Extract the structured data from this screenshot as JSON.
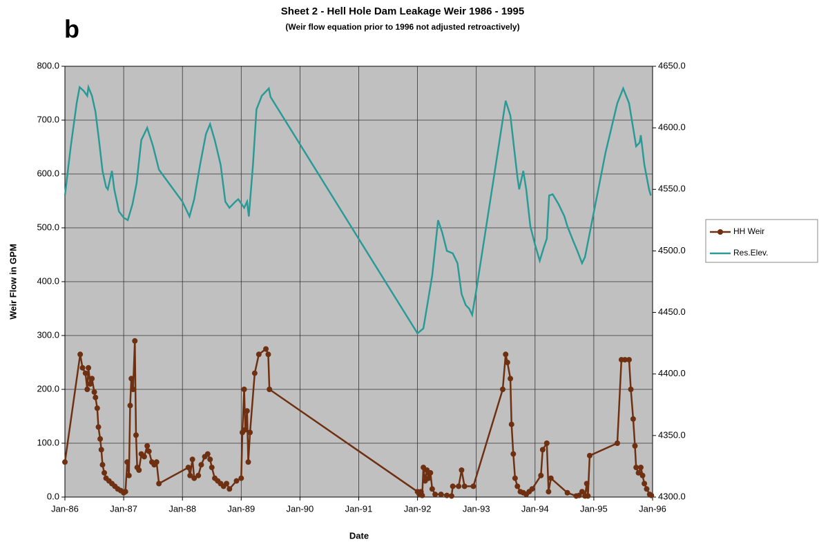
{
  "chart_data": {
    "type": "line",
    "title": "Sheet 2 - Hell Hole Dam Leakage Weir 1986 - 1995",
    "subtitle": "(Weir flow equation prior to 1996 not adjusted retroactively)",
    "annotation": "b",
    "xlabel": "Date",
    "ylabel": "Weir Flow in GPM",
    "xlim": [
      1986,
      1996
    ],
    "xticks": [
      {
        "value": 1986,
        "label": "Jan-86"
      },
      {
        "value": 1987,
        "label": "Jan-87"
      },
      {
        "value": 1988,
        "label": "Jan-88"
      },
      {
        "value": 1989,
        "label": "Jan-89"
      },
      {
        "value": 1990,
        "label": "Jan-90"
      },
      {
        "value": 1991,
        "label": "Jan-91"
      },
      {
        "value": 1992,
        "label": "Jan-92"
      },
      {
        "value": 1993,
        "label": "Jan-93"
      },
      {
        "value": 1994,
        "label": "Jan-94"
      },
      {
        "value": 1995,
        "label": "Jan-95"
      },
      {
        "value": 1996,
        "label": "Jan-96"
      }
    ],
    "ylim": [
      0,
      800
    ],
    "yticks": [
      {
        "value": 0,
        "label": "0.0"
      },
      {
        "value": 100,
        "label": "100.0"
      },
      {
        "value": 200,
        "label": "200.0"
      },
      {
        "value": 300,
        "label": "300.0"
      },
      {
        "value": 400,
        "label": "400.0"
      },
      {
        "value": 500,
        "label": "500.0"
      },
      {
        "value": 600,
        "label": "600.0"
      },
      {
        "value": 700,
        "label": "700.0"
      },
      {
        "value": 800,
        "label": "800.0"
      }
    ],
    "y2lim": [
      4300,
      4650
    ],
    "y2ticks": [
      {
        "value": 4300,
        "label": "4300.0"
      },
      {
        "value": 4350,
        "label": "4350.0"
      },
      {
        "value": 4400,
        "label": "4400.0"
      },
      {
        "value": 4450,
        "label": "4450.0"
      },
      {
        "value": 4500,
        "label": "4500.0"
      },
      {
        "value": 4550,
        "label": "4550.0"
      },
      {
        "value": 4600,
        "label": "4600.0"
      },
      {
        "value": 4650,
        "label": "4650.0"
      }
    ],
    "grid": true,
    "legend": "right",
    "series": [
      {
        "name": "HH Weir",
        "color": "#6e3010",
        "markers": true,
        "x": [
          1986.0,
          1986.26,
          1986.3,
          1986.35,
          1986.38,
          1986.4,
          1986.43,
          1986.46,
          1986.5,
          1986.52,
          1986.55,
          1986.57,
          1986.6,
          1986.62,
          1986.64,
          1986.67,
          1986.7,
          1986.75,
          1986.8,
          1986.85,
          1986.9,
          1986.95,
          1987.0,
          1987.03,
          1987.06,
          1987.09,
          1987.11,
          1987.13,
          1987.16,
          1987.19,
          1987.21,
          1987.23,
          1987.26,
          1987.3,
          1987.35,
          1987.4,
          1987.43,
          1987.48,
          1987.52,
          1987.56,
          1987.6,
          1988.1,
          1988.13,
          1988.17,
          1988.2,
          1988.27,
          1988.32,
          1988.38,
          1988.43,
          1988.47,
          1988.5,
          1988.55,
          1988.6,
          1988.65,
          1988.7,
          1988.75,
          1988.8,
          1988.92,
          1989.0,
          1989.02,
          1989.05,
          1989.07,
          1989.1,
          1989.12,
          1989.15,
          1989.23,
          1989.3,
          1989.42,
          1989.46,
          1989.48,
          1992.0,
          1992.03,
          1992.06,
          1992.08,
          1992.1,
          1992.13,
          1992.16,
          1992.19,
          1992.22,
          1992.25,
          1992.3,
          1992.4,
          1992.5,
          1992.58,
          1992.6,
          1992.7,
          1992.75,
          1992.8,
          1992.95,
          1993.45,
          1993.5,
          1993.53,
          1993.58,
          1993.6,
          1993.63,
          1993.66,
          1993.7,
          1993.75,
          1993.8,
          1993.85,
          1993.9,
          1993.95,
          1994.1,
          1994.13,
          1994.2,
          1994.23,
          1994.27,
          1994.55,
          1994.7,
          1994.75,
          1994.8,
          1994.85,
          1994.88,
          1994.9,
          1994.93,
          1995.4,
          1995.47,
          1995.53,
          1995.6,
          1995.63,
          1995.67,
          1995.7,
          1995.72,
          1995.76,
          1995.8,
          1995.83,
          1995.86,
          1995.9,
          1995.95,
          1995.98
        ],
        "values": [
          65,
          265,
          240,
          230,
          200,
          240,
          210,
          220,
          195,
          185,
          165,
          130,
          108,
          88,
          60,
          45,
          35,
          30,
          25,
          20,
          15,
          12,
          8,
          10,
          65,
          40,
          170,
          220,
          200,
          290,
          115,
          55,
          50,
          80,
          75,
          95,
          85,
          65,
          60,
          65,
          25,
          55,
          40,
          70,
          35,
          40,
          60,
          75,
          80,
          70,
          55,
          35,
          30,
          25,
          20,
          25,
          15,
          30,
          35,
          120,
          200,
          125,
          160,
          65,
          120,
          230,
          265,
          275,
          265,
          200,
          10,
          5,
          10,
          3,
          55,
          30,
          50,
          35,
          45,
          15,
          5,
          5,
          3,
          2,
          20,
          20,
          50,
          20,
          20,
          200,
          265,
          250,
          220,
          135,
          80,
          35,
          20,
          10,
          8,
          5,
          10,
          15,
          40,
          88,
          100,
          10,
          35,
          8,
          2,
          3,
          10,
          2,
          25,
          2,
          77,
          100,
          255,
          255,
          255,
          200,
          145,
          95,
          55,
          45,
          55,
          40,
          25,
          15,
          5,
          3
        ]
      },
      {
        "name": "Res.Elev.",
        "color": "#2a9a96",
        "axis": "y2",
        "markers": false,
        "x": [
          1986.0,
          1986.1,
          1986.2,
          1986.25,
          1986.32,
          1986.38,
          1986.4,
          1986.46,
          1986.52,
          1986.58,
          1986.64,
          1986.7,
          1986.73,
          1986.8,
          1986.84,
          1986.92,
          1987.0,
          1987.07,
          1987.15,
          1987.22,
          1987.3,
          1987.4,
          1987.5,
          1987.6,
          1988.0,
          1988.12,
          1988.2,
          1988.3,
          1988.4,
          1988.47,
          1988.55,
          1988.65,
          1988.73,
          1988.8,
          1988.9,
          1988.95,
          1989.05,
          1989.1,
          1989.13,
          1989.2,
          1989.26,
          1989.35,
          1989.47,
          1989.5,
          1992.0,
          1992.1,
          1992.25,
          1992.35,
          1992.42,
          1992.5,
          1992.6,
          1992.68,
          1992.75,
          1992.82,
          1992.88,
          1992.93,
          1993.0,
          1993.3,
          1993.5,
          1993.58,
          1993.7,
          1993.73,
          1993.8,
          1993.85,
          1993.92,
          1994.0,
          1994.08,
          1994.15,
          1994.2,
          1994.24,
          1994.3,
          1994.4,
          1994.5,
          1994.55,
          1994.65,
          1994.72,
          1994.8,
          1994.85,
          1995.2,
          1995.4,
          1995.5,
          1995.6,
          1995.72,
          1995.78,
          1995.8,
          1995.86,
          1995.94,
          1995.97
        ],
        "values": [
          4545,
          4585,
          4620,
          4633,
          4630,
          4626,
          4633,
          4626,
          4613,
          4590,
          4565,
          4552,
          4550,
          4565,
          4550,
          4532,
          4527,
          4525,
          4538,
          4555,
          4590,
          4600,
          4585,
          4566,
          4540,
          4528,
          4542,
          4570,
          4595,
          4603,
          4590,
          4570,
          4540,
          4535,
          4540,
          4542,
          4535,
          4540,
          4528,
          4570,
          4615,
          4626,
          4632,
          4625,
          4433,
          4437,
          4480,
          4525,
          4515,
          4500,
          4498,
          4490,
          4465,
          4456,
          4453,
          4448,
          4468,
          4560,
          4622,
          4610,
          4560,
          4550,
          4565,
          4550,
          4520,
          4505,
          4492,
          4503,
          4510,
          4545,
          4546,
          4538,
          4528,
          4520,
          4508,
          4500,
          4490,
          4495,
          4580,
          4620,
          4632,
          4620,
          4585,
          4588,
          4594,
          4570,
          4550,
          4545
        ]
      }
    ]
  }
}
